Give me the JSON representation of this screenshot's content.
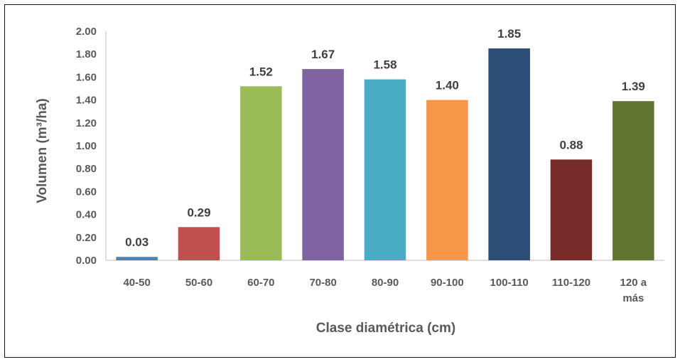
{
  "chart_data": {
    "type": "bar",
    "categories": [
      [
        "40-50"
      ],
      [
        "50-60"
      ],
      [
        "60-70"
      ],
      [
        "70-80"
      ],
      [
        "80-90"
      ],
      [
        "90-100"
      ],
      [
        "100-110"
      ],
      [
        "110-120"
      ],
      [
        "120 a",
        "más"
      ]
    ],
    "values": [
      0.03,
      0.29,
      1.52,
      1.67,
      1.58,
      1.4,
      1.85,
      0.88,
      1.39
    ],
    "data_labels": [
      "0.03",
      "0.29",
      "1.52",
      "1.67",
      "1.58",
      "1.40",
      "1.85",
      "0.88",
      "1.39"
    ],
    "colors": [
      "#4F81BD",
      "#C0504D",
      "#9BBB59",
      "#8064A2",
      "#4BACC6",
      "#F79646",
      "#2C4D75",
      "#772C2A",
      "#5F7530"
    ],
    "xlabel": "Clase diamétrica (cm)",
    "ylabel": "Volumen (m³/ha)",
    "ylim": [
      0,
      2.0
    ],
    "yticks": [
      "0.00",
      "0.20",
      "0.40",
      "0.60",
      "0.80",
      "1.00",
      "1.20",
      "1.40",
      "1.60",
      "1.80",
      "2.00"
    ],
    "grid": false,
    "legend": "none"
  }
}
